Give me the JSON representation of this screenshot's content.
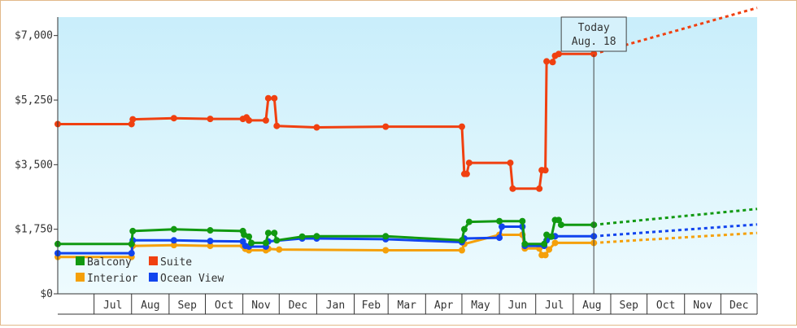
{
  "chart_data": {
    "type": "line",
    "title": "",
    "xlabel": "",
    "ylabel": "",
    "y_ticks": [
      "$0",
      "$1,750",
      "$3,500",
      "$5,250",
      "$7,000"
    ],
    "y_tick_values": [
      0,
      1750,
      3500,
      5250,
      7000
    ],
    "ylim": [
      0,
      7500
    ],
    "x_ticks": [
      "Jul",
      "Aug",
      "Sep",
      "Oct",
      "Nov",
      "Dec",
      "Jan",
      "Feb",
      "Mar",
      "Apr",
      "May",
      "Jun",
      "Jul",
      "Aug",
      "Sep",
      "Oct",
      "Nov",
      "Dec"
    ],
    "xlim": [
      "2012-06-01",
      "2013-12-31"
    ],
    "today": {
      "label": "Today",
      "date_label": "Aug. 18",
      "date": "2013-08-18"
    },
    "grid": false,
    "legend_position": "bottom-left",
    "series": [
      {
        "name": "Suite",
        "color": "#f04010",
        "points": [
          [
            "2012-06-01",
            4600
          ],
          [
            "2012-08-01",
            4600
          ],
          [
            "2012-08-02",
            4730
          ],
          [
            "2012-09-05",
            4760
          ],
          [
            "2012-10-05",
            4740
          ],
          [
            "2012-11-01",
            4740
          ],
          [
            "2012-11-04",
            4780
          ],
          [
            "2012-11-06",
            4700
          ],
          [
            "2012-11-20",
            4700
          ],
          [
            "2012-11-22",
            5300
          ],
          [
            "2012-11-27",
            5300
          ],
          [
            "2012-11-29",
            4550
          ],
          [
            "2013-01-01",
            4510
          ],
          [
            "2013-02-27",
            4530
          ],
          [
            "2013-05-01",
            4530
          ],
          [
            "2013-05-03",
            3250
          ],
          [
            "2013-05-05",
            3250
          ],
          [
            "2013-05-07",
            3550
          ],
          [
            "2013-06-10",
            3550
          ],
          [
            "2013-06-12",
            2850
          ],
          [
            "2013-07-04",
            2850
          ],
          [
            "2013-07-06",
            3350
          ],
          [
            "2013-07-09",
            3350
          ],
          [
            "2013-07-10",
            6300
          ],
          [
            "2013-07-15",
            6280
          ],
          [
            "2013-07-17",
            6450
          ],
          [
            "2013-07-20",
            6500
          ],
          [
            "2013-08-18",
            6500
          ]
        ],
        "forecast": [
          [
            "2013-08-18",
            6500
          ],
          [
            "2013-12-31",
            7750
          ]
        ]
      },
      {
        "name": "Balcony",
        "color": "#119911",
        "points": [
          [
            "2012-06-01",
            1350
          ],
          [
            "2012-08-01",
            1350
          ],
          [
            "2012-08-02",
            1700
          ],
          [
            "2012-09-05",
            1750
          ],
          [
            "2012-10-05",
            1720
          ],
          [
            "2012-11-01",
            1700
          ],
          [
            "2012-11-02",
            1600
          ],
          [
            "2012-11-06",
            1550
          ],
          [
            "2012-11-08",
            1380
          ],
          [
            "2012-11-20",
            1380
          ],
          [
            "2012-11-22",
            1650
          ],
          [
            "2012-11-27",
            1650
          ],
          [
            "2012-11-29",
            1450
          ],
          [
            "2012-12-20",
            1550
          ],
          [
            "2013-01-01",
            1560
          ],
          [
            "2013-02-27",
            1560
          ],
          [
            "2013-05-01",
            1450
          ],
          [
            "2013-05-03",
            1750
          ],
          [
            "2013-05-07",
            1950
          ],
          [
            "2013-06-01",
            1970
          ],
          [
            "2013-06-20",
            1970
          ],
          [
            "2013-06-22",
            1350
          ],
          [
            "2013-07-08",
            1350
          ],
          [
            "2013-07-10",
            1600
          ],
          [
            "2013-07-14",
            1550
          ],
          [
            "2013-07-17",
            2000
          ],
          [
            "2013-07-20",
            2000
          ],
          [
            "2013-07-22",
            1870
          ],
          [
            "2013-08-18",
            1870
          ]
        ],
        "forecast": [
          [
            "2013-08-18",
            1870
          ],
          [
            "2013-12-31",
            2300
          ]
        ]
      },
      {
        "name": "Ocean View",
        "color": "#1144ee",
        "points": [
          [
            "2012-06-01",
            1100
          ],
          [
            "2012-08-01",
            1100
          ],
          [
            "2012-08-02",
            1450
          ],
          [
            "2012-09-05",
            1450
          ],
          [
            "2012-10-05",
            1430
          ],
          [
            "2012-11-01",
            1420
          ],
          [
            "2012-11-03",
            1300
          ],
          [
            "2012-11-06",
            1280
          ],
          [
            "2012-11-20",
            1280
          ],
          [
            "2012-11-22",
            1420
          ],
          [
            "2012-12-20",
            1500
          ],
          [
            "2013-01-01",
            1500
          ],
          [
            "2013-02-27",
            1480
          ],
          [
            "2013-05-01",
            1400
          ],
          [
            "2013-05-03",
            1500
          ],
          [
            "2013-06-01",
            1520
          ],
          [
            "2013-06-03",
            1820
          ],
          [
            "2013-06-20",
            1820
          ],
          [
            "2013-06-22",
            1300
          ],
          [
            "2013-07-08",
            1300
          ],
          [
            "2013-07-10",
            1450
          ],
          [
            "2013-07-17",
            1560
          ],
          [
            "2013-08-18",
            1560
          ]
        ],
        "forecast": [
          [
            "2013-08-18",
            1560
          ],
          [
            "2013-12-31",
            1880
          ]
        ]
      },
      {
        "name": "Interior",
        "color": "#f5a00a",
        "points": [
          [
            "2012-06-01",
            1000
          ],
          [
            "2012-08-01",
            1000
          ],
          [
            "2012-08-02",
            1300
          ],
          [
            "2012-09-05",
            1320
          ],
          [
            "2012-10-05",
            1300
          ],
          [
            "2012-11-01",
            1300
          ],
          [
            "2012-11-03",
            1220
          ],
          [
            "2012-11-06",
            1180
          ],
          [
            "2012-11-20",
            1180
          ],
          [
            "2012-11-22",
            1220
          ],
          [
            "2012-12-01",
            1200
          ],
          [
            "2013-02-27",
            1180
          ],
          [
            "2013-05-01",
            1180
          ],
          [
            "2013-05-03",
            1350
          ],
          [
            "2013-06-01",
            1600
          ],
          [
            "2013-06-20",
            1600
          ],
          [
            "2013-06-22",
            1230
          ],
          [
            "2013-07-04",
            1230
          ],
          [
            "2013-07-06",
            1050
          ],
          [
            "2013-07-09",
            1050
          ],
          [
            "2013-07-12",
            1200
          ],
          [
            "2013-07-17",
            1380
          ],
          [
            "2013-08-18",
            1380
          ]
        ],
        "forecast": [
          [
            "2013-08-18",
            1380
          ],
          [
            "2013-12-31",
            1650
          ]
        ]
      }
    ]
  }
}
